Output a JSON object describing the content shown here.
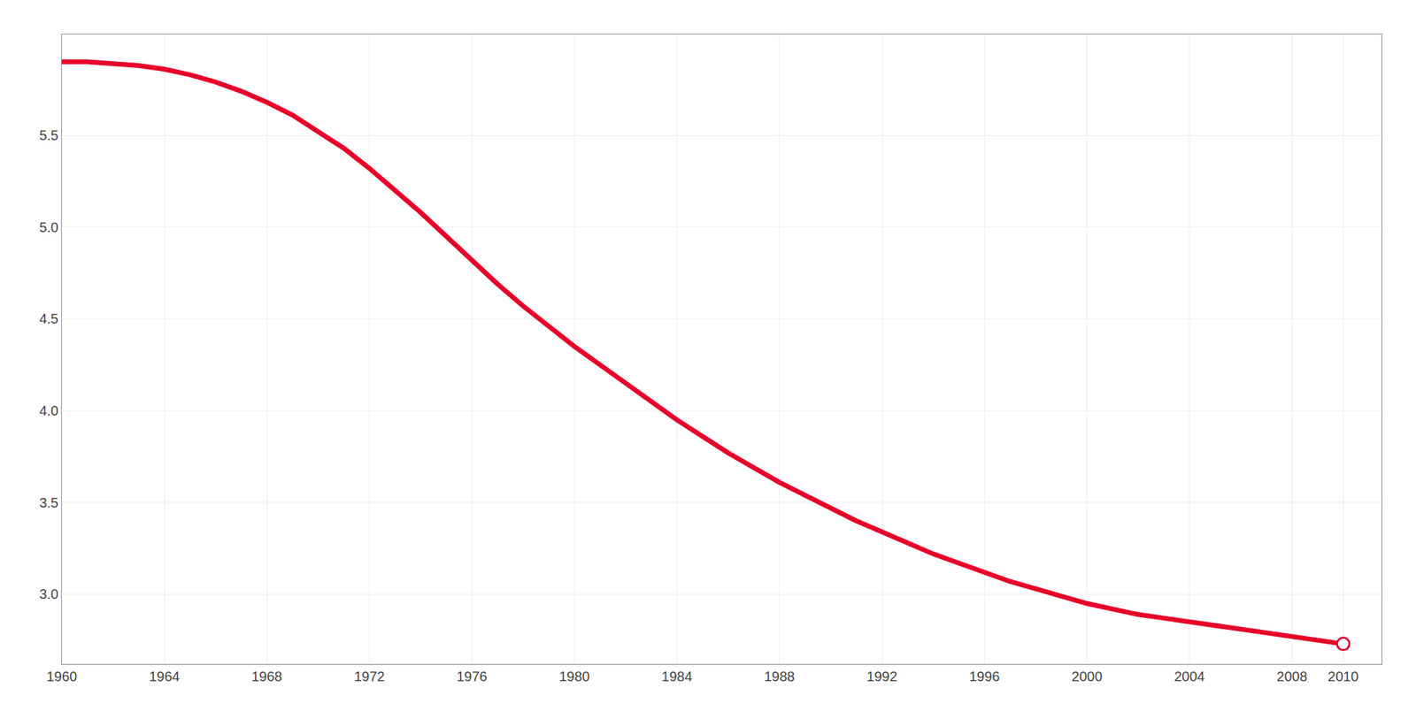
{
  "chart_data": {
    "type": "line",
    "x": [
      1960,
      1961,
      1962,
      1963,
      1964,
      1965,
      1966,
      1967,
      1968,
      1969,
      1970,
      1971,
      1972,
      1973,
      1974,
      1975,
      1976,
      1977,
      1978,
      1979,
      1980,
      1981,
      1982,
      1983,
      1984,
      1985,
      1986,
      1987,
      1988,
      1989,
      1990,
      1991,
      1992,
      1993,
      1994,
      1995,
      1996,
      1997,
      1998,
      1999,
      2000,
      2001,
      2002,
      2003,
      2004,
      2005,
      2006,
      2007,
      2008,
      2009,
      2010
    ],
    "values": [
      5.9,
      5.9,
      5.89,
      5.88,
      5.86,
      5.83,
      5.79,
      5.74,
      5.68,
      5.61,
      5.52,
      5.43,
      5.32,
      5.2,
      5.08,
      4.95,
      4.82,
      4.69,
      4.57,
      4.46,
      4.35,
      4.25,
      4.15,
      4.05,
      3.95,
      3.86,
      3.77,
      3.69,
      3.61,
      3.54,
      3.47,
      3.4,
      3.34,
      3.28,
      3.22,
      3.17,
      3.12,
      3.07,
      3.03,
      2.99,
      2.95,
      2.92,
      2.89,
      2.87,
      2.85,
      2.83,
      2.81,
      2.79,
      2.77,
      2.75,
      2.73
    ],
    "color": "#E8002A",
    "xlim": [
      1960,
      2011.5
    ],
    "xticks": [
      1960,
      1964,
      1968,
      1972,
      1976,
      1980,
      1984,
      1988,
      1992,
      1996,
      2000,
      2004,
      2008,
      2010
    ],
    "ylim": [
      2.62,
      6.05
    ],
    "yticks": [
      {
        "value": 3,
        "label": "3.0"
      },
      3.5,
      {
        "value": 4,
        "label": "4.0"
      },
      4.5,
      {
        "value": 5,
        "label": "5.0"
      },
      5.5
    ],
    "grid": true
  }
}
